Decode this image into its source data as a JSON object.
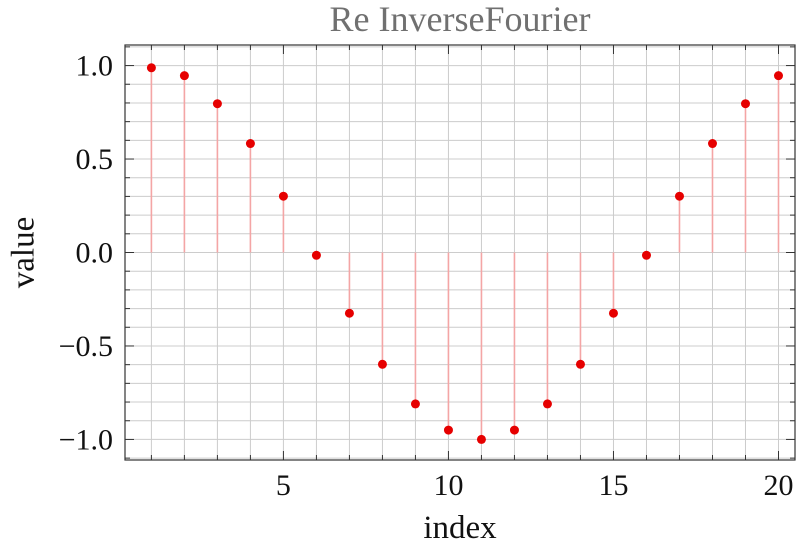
{
  "chart_data": {
    "type": "scatter",
    "style": "stem",
    "title": "Re InverseFourier",
    "xlabel": "index",
    "ylabel": "value",
    "xlim": [
      0.2,
      20.5
    ],
    "ylim": [
      -1.11,
      1.11
    ],
    "x_ticks": [
      5,
      10,
      15,
      20
    ],
    "x_tick_labels": [
      "5",
      "10",
      "15",
      "20"
    ],
    "y_ticks": [
      -1.0,
      -0.5,
      0.0,
      0.5,
      1.0
    ],
    "y_tick_labels": [
      "−1.0",
      "−0.5",
      "0.0",
      "0.5",
      "1.0"
    ],
    "grid": true,
    "colors": {
      "point": "#e60000",
      "stem": "#f4a5a5",
      "grid": "#cccccc",
      "frame": "#333333"
    },
    "series": [
      {
        "x": [
          1,
          2,
          3,
          4,
          5,
          6,
          7,
          8,
          9,
          10,
          11,
          12,
          13,
          14,
          15,
          16,
          17,
          18,
          19,
          20
        ],
        "values": [
          0.988,
          0.946,
          0.796,
          0.583,
          0.301,
          -0.015,
          -0.325,
          -0.598,
          -0.81,
          -0.95,
          -1.0,
          -0.95,
          -0.81,
          -0.598,
          -0.325,
          -0.015,
          0.301,
          0.583,
          0.796,
          0.946
        ]
      }
    ]
  }
}
